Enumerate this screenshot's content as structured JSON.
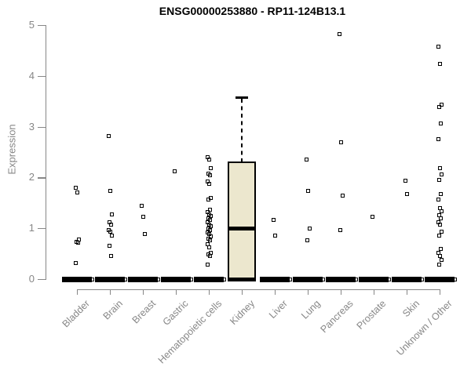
{
  "title": "ENSG00000253880 - RP11-124B13.1",
  "y_axis": {
    "label": "Expression",
    "ticks": [
      "0",
      "1",
      "2",
      "3",
      "4",
      "5"
    ]
  },
  "colors": {
    "box_fill": "#ECE7CE",
    "marker": "#000000",
    "axis": "#878787",
    "title_text": "#000000"
  },
  "chart_data": {
    "type": "boxplot",
    "title": "ENSG00000253880 - RP11-124B13.1",
    "xlabel": "",
    "ylabel": "Expression",
    "ylim": [
      0,
      5
    ],
    "grid": false,
    "categories": [
      "Bladder",
      "Brain",
      "Breast",
      "Gastric",
      "Hematopoietic cells",
      "Kidney",
      "Liver",
      "Lung",
      "Pancreas",
      "Prostate",
      "Skin",
      "Unknown / Other"
    ],
    "series": [
      {
        "name": "Bladder",
        "box": {
          "q1": 0,
          "median": 0,
          "q3": 0,
          "whisker_high": null
        },
        "points": [
          1.8,
          1.7,
          0.78,
          0.74,
          0.71,
          0.31
        ]
      },
      {
        "name": "Brain",
        "box": {
          "q1": 0,
          "median": 0,
          "q3": 0,
          "whisker_high": null
        },
        "points": [
          2.81,
          1.74,
          1.28,
          1.12,
          1.08,
          0.97,
          0.93,
          0.85,
          0.66,
          0.46
        ]
      },
      {
        "name": "Breast",
        "box": {
          "q1": 0,
          "median": 0,
          "q3": 0,
          "whisker_high": null
        },
        "points": [
          1.44,
          1.22,
          0.88
        ]
      },
      {
        "name": "Gastric",
        "box": {
          "q1": 0,
          "median": 0,
          "q3": 0,
          "whisker_high": null
        },
        "points": [
          2.12
        ]
      },
      {
        "name": "Hematopoietic cells",
        "box": {
          "q1": 0,
          "median": 0,
          "q3": 0,
          "whisker_high": null
        },
        "points": [
          2.4,
          2.36,
          2.18,
          2.08,
          2.05,
          1.92,
          1.88,
          1.6,
          1.57,
          1.36,
          1.32,
          1.28,
          1.24,
          1.2,
          1.16,
          1.12,
          1.08,
          1.04,
          1.0,
          0.96,
          0.92,
          0.88,
          0.84,
          0.8,
          0.76,
          0.68,
          0.62,
          0.52,
          0.48,
          0.45,
          0.29
        ]
      },
      {
        "name": "Kidney",
        "box": {
          "q1": 0,
          "median": 1.0,
          "q3": 2.31,
          "whisker_high": 3.59
        },
        "points": []
      },
      {
        "name": "Liver",
        "box": {
          "q1": 0,
          "median": 0,
          "q3": 0,
          "whisker_high": null
        },
        "points": [
          1.16,
          0.86
        ]
      },
      {
        "name": "Lung",
        "box": {
          "q1": 0,
          "median": 0,
          "q3": 0,
          "whisker_high": null
        },
        "points": [
          2.35,
          1.74,
          1.0,
          0.77
        ]
      },
      {
        "name": "Pancreas",
        "box": {
          "q1": 0,
          "median": 0,
          "q3": 0,
          "whisker_high": null
        },
        "points": [
          4.83,
          2.69,
          1.64,
          0.97
        ]
      },
      {
        "name": "Prostate",
        "box": {
          "q1": 0,
          "median": 0,
          "q3": 0,
          "whisker_high": null
        },
        "points": [
          1.22
        ]
      },
      {
        "name": "Skin",
        "box": {
          "q1": 0,
          "median": 0,
          "q3": 0,
          "whisker_high": null
        },
        "points": [
          1.94,
          1.67
        ]
      },
      {
        "name": "Unknown / Other",
        "box": {
          "q1": 0,
          "median": 0,
          "q3": 0,
          "whisker_high": null
        },
        "points": [
          4.57,
          4.24,
          3.43,
          3.38,
          3.07,
          2.76,
          2.18,
          2.06,
          1.95,
          1.68,
          1.57,
          1.4,
          1.33,
          1.26,
          1.19,
          1.12,
          1.07,
          0.94,
          0.86,
          0.59,
          0.52,
          0.45,
          0.38,
          0.29
        ]
      }
    ]
  }
}
